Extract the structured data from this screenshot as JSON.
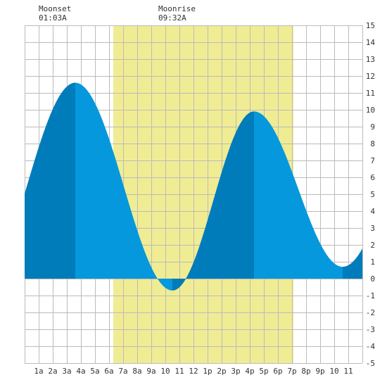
{
  "chart_data": {
    "type": "area",
    "title": "",
    "xlabel": "",
    "ylabel": "",
    "x_range_hours": [
      0,
      24
    ],
    "ylim": [
      -5,
      15
    ],
    "x_tick_labels": [
      "1a",
      "2a",
      "3a",
      "4a",
      "5a",
      "6a",
      "7a",
      "8a",
      "9a",
      "10",
      "11",
      "12",
      "1p",
      "2p",
      "3p",
      "4p",
      "5p",
      "6p",
      "7p",
      "8p",
      "9p",
      "10",
      "11"
    ],
    "y_ticks": [
      15,
      14,
      13,
      12,
      11,
      10,
      9,
      8,
      7,
      6,
      5,
      4,
      3,
      2,
      1,
      0,
      -1,
      -2,
      -3,
      -4,
      -5
    ],
    "grid": true,
    "moon_events": [
      {
        "label": "Moonset",
        "time": "01:03A"
      },
      {
        "label": "Moonrise",
        "time": "09:32A"
      }
    ],
    "moon_visible_hours": [
      6.3,
      19.1
    ],
    "extremes": [
      {
        "kind": "high",
        "hour": 3.6,
        "height": 11.6
      },
      {
        "kind": "low",
        "hour": 10.5,
        "height": -0.7
      },
      {
        "kind": "high",
        "hour": 16.3,
        "height": 9.9
      },
      {
        "kind": "low",
        "hour": 22.6,
        "height": 0.7
      }
    ],
    "start_height": 4.1,
    "end_height": 2.1,
    "dark_shade_intervals": [
      [
        0,
        3.6
      ],
      [
        10.5,
        16.3
      ],
      [
        22.6,
        24
      ]
    ],
    "colors": {
      "moon_band": "#f0ec94",
      "tide_light": "#0598dc",
      "tide_dark": "#007cba",
      "grid": "#bbbbbb",
      "background": "#ffffff"
    }
  }
}
